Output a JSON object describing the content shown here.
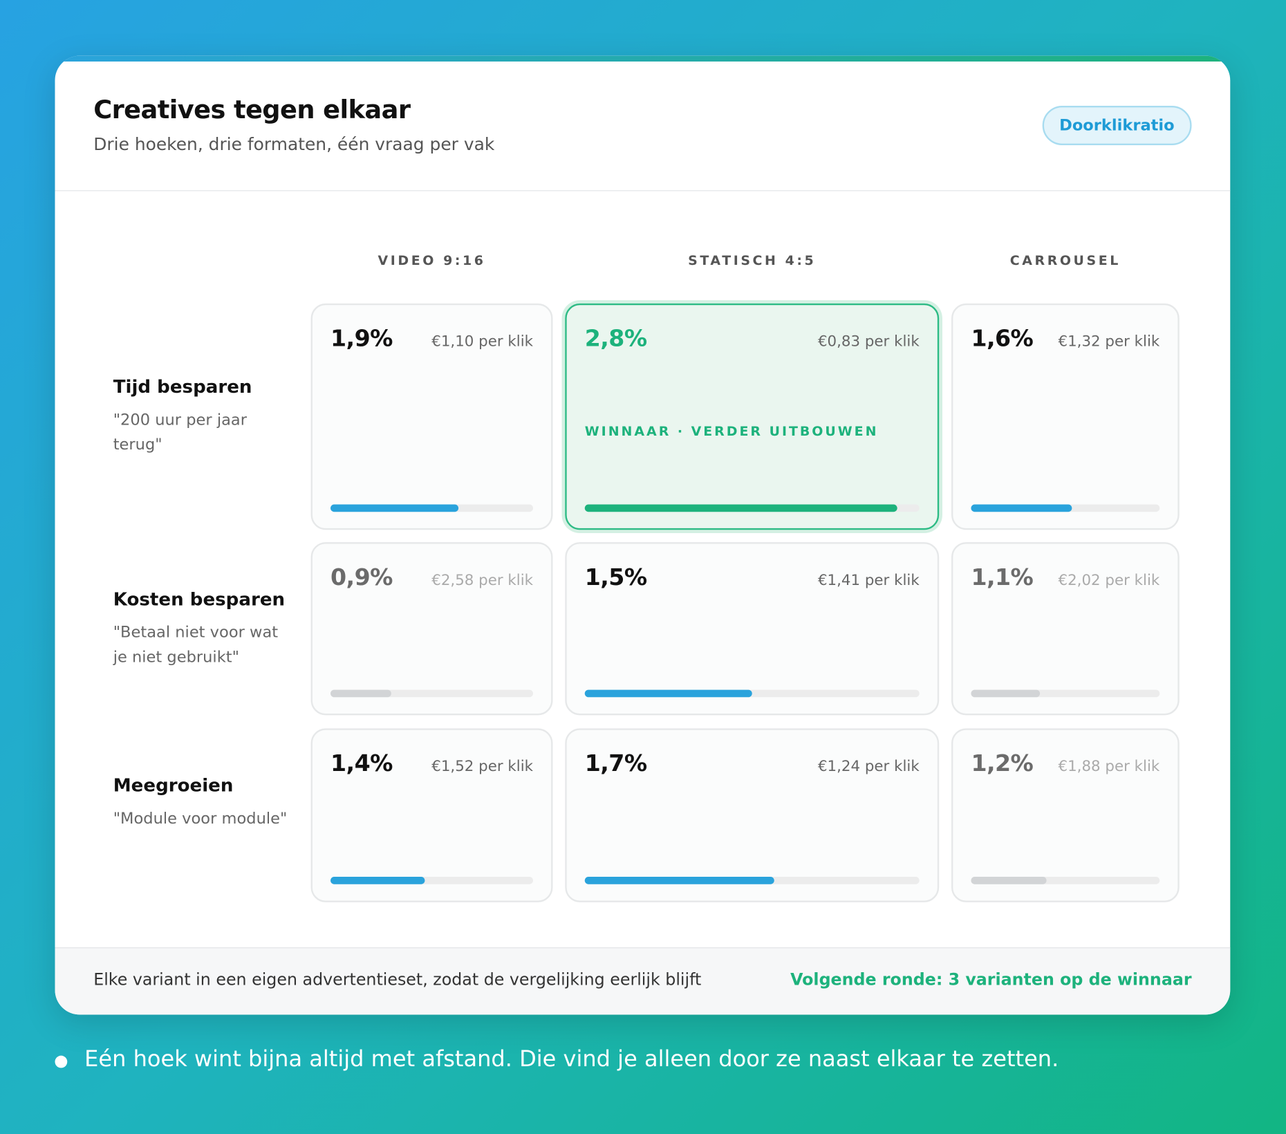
{
  "header": {
    "title": "Creatives tegen elkaar",
    "subtitle": "Drie hoeken, drie formaten, één vraag per vak",
    "badge": "Doorklikratio"
  },
  "table": {
    "columns": [
      "VIDEO 9:16",
      "STATISCH 4:5",
      "CARROUSEL"
    ],
    "xlim": [
      0,
      3
    ],
    "bar_colors": {
      "winner": "#1db27c",
      "default": "#2aa3dc",
      "muted": "#d2d4d6"
    },
    "rows": [
      {
        "title": "Tijd besparen",
        "quote": "\"200 uur per jaar terug\"",
        "cells": [
          {
            "value": 1.9,
            "label": "1,9%",
            "cpc": "€1,10 per klik",
            "style": "default"
          },
          {
            "value": 2.8,
            "label": "2,8%",
            "cpc": "€0,83 per klik",
            "style": "winner",
            "note": "WINNAAR · VERDER UITBOUWEN"
          },
          {
            "value": 1.6,
            "label": "1,6%",
            "cpc": "€1,32 per klik",
            "style": "default"
          }
        ]
      },
      {
        "title": "Kosten besparen",
        "quote": "\"Betaal niet voor wat je niet gebruikt\"",
        "cells": [
          {
            "value": 0.9,
            "label": "0,9%",
            "cpc": "€2,58 per klik",
            "style": "muted"
          },
          {
            "value": 1.5,
            "label": "1,5%",
            "cpc": "€1,41 per klik",
            "style": "default"
          },
          {
            "value": 1.1,
            "label": "1,1%",
            "cpc": "€2,02 per klik",
            "style": "muted"
          }
        ]
      },
      {
        "title": "Meegroeien",
        "quote": "\"Module voor module\"",
        "cells": [
          {
            "value": 1.4,
            "label": "1,4%",
            "cpc": "€1,52 per klik",
            "style": "default"
          },
          {
            "value": 1.7,
            "label": "1,7%",
            "cpc": "€1,24 per klik",
            "style": "default"
          },
          {
            "value": 1.2,
            "label": "1,2%",
            "cpc": "€1,88 per klik",
            "style": "muted"
          }
        ]
      }
    ]
  },
  "footer": {
    "note": "Elke variant in een eigen advertentieset, zodat de vergelijking eerlijk blijft",
    "next": "Volgende ronde: 3 varianten op de winnaar"
  },
  "takeaway": "Eén hoek wint bijna altijd met afstand. Die vind je alleen door ze naast elkaar te zetten."
}
